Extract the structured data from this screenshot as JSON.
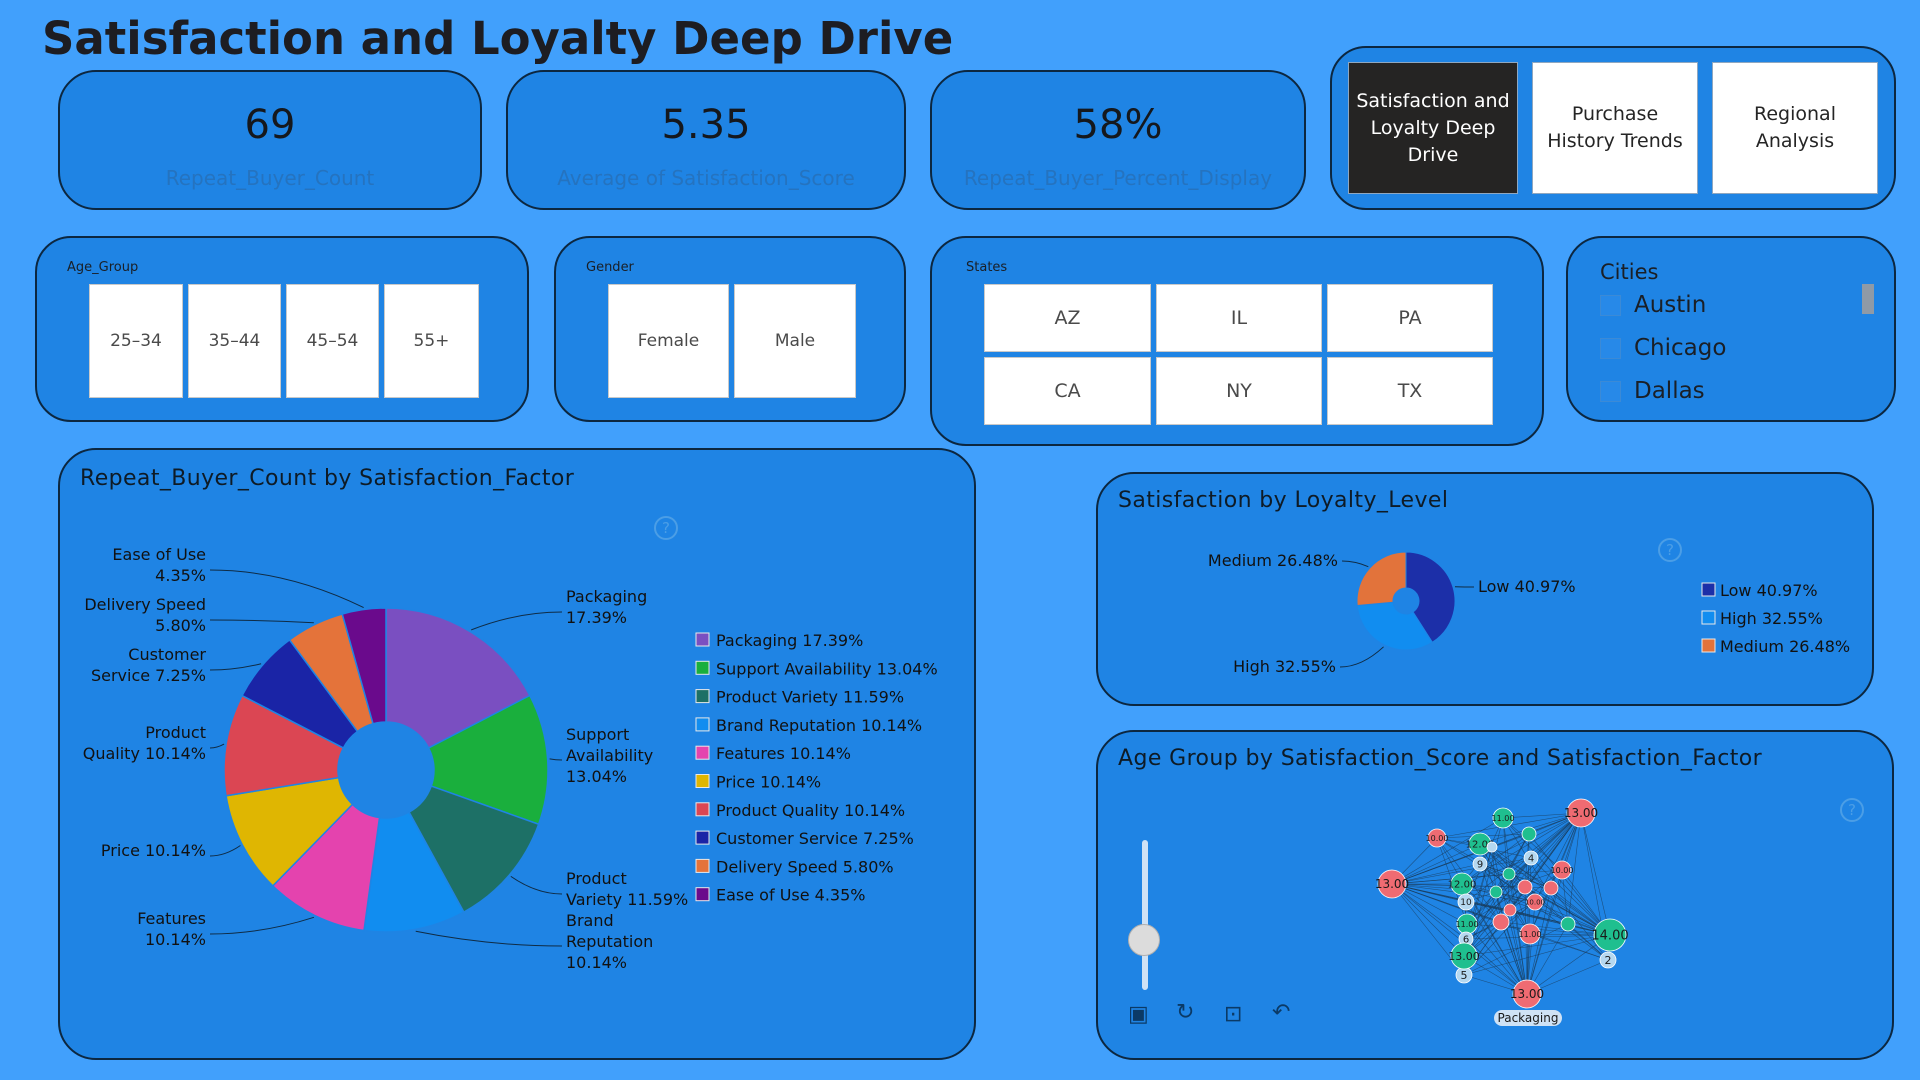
{
  "page": {
    "title": "Satisfaction and Loyalty Deep Drive"
  },
  "kpis": [
    {
      "value": "69",
      "label": "Repeat_Buyer_Count"
    },
    {
      "value": "5.35",
      "label": "Average of Satisfaction_Score"
    },
    {
      "value": "58%",
      "label": "Repeat_Buyer_Percent_Display"
    }
  ],
  "nav": {
    "satisfaction": "Satisfaction and Loyalty Deep Drive",
    "purchase": "Purchase History Trends",
    "regional": "Regional Analysis"
  },
  "slicers": {
    "age": {
      "title": "Age_Group",
      "options": [
        "25–34",
        "35–44",
        "45–54",
        "55+"
      ]
    },
    "gender": {
      "title": "Gender",
      "options": [
        "Female",
        "Male"
      ]
    },
    "states": {
      "title": "States",
      "options": [
        "AZ",
        "IL",
        "PA",
        "CA",
        "NY",
        "TX"
      ]
    },
    "cities": {
      "title": "Cities",
      "options": [
        "Austin",
        "Chicago",
        "Dallas"
      ]
    }
  },
  "icons": {
    "help": "help-circle-icon",
    "screenshot": "camera-icon",
    "refresh": "refresh-icon",
    "lock": "lock-icon",
    "undo": "undo-icon",
    "zoom": "zoom-slider"
  },
  "chart_data": [
    {
      "type": "pie",
      "title": "Repeat_Buyer_Count by Satisfaction_Factor",
      "legend_position": "right",
      "donut": true,
      "slices": [
        {
          "label": "Packaging",
          "value": 17.39,
          "pct": "17.39%",
          "legend": "Packaging 17.39%",
          "callout": [
            "Packaging",
            "17.39%"
          ],
          "color": "#7a4fc1"
        },
        {
          "label": "Support Availability",
          "value": 13.04,
          "pct": "13.04%",
          "legend": "Support Availability 13.04%",
          "callout": [
            "Support",
            "Availability",
            "13.04%"
          ],
          "color": "#1aaf3d"
        },
        {
          "label": "Product Variety",
          "value": 11.59,
          "pct": "11.59%",
          "legend": "Product Variety 11.59%",
          "callout": [
            "Product",
            "Variety 11.59%"
          ],
          "color": "#1d7066"
        },
        {
          "label": "Brand Reputation",
          "value": 10.14,
          "pct": "10.14%",
          "legend": "Brand Reputation 10.14%",
          "callout": [
            "Brand",
            "Reputation",
            "10.14%"
          ],
          "color": "#118df0"
        },
        {
          "label": "Features",
          "value": 10.14,
          "pct": "10.14%",
          "legend": "Features 10.14%",
          "callout": [
            "Features",
            "10.14%"
          ],
          "color": "#e443ae"
        },
        {
          "label": "Price",
          "value": 10.14,
          "pct": "10.14%",
          "legend": "Price 10.14%",
          "callout": [
            "Price 10.14%"
          ],
          "color": "#dfb602"
        },
        {
          "label": "Product Quality",
          "value": 10.14,
          "pct": "10.14%",
          "legend": "Product Quality 10.14%",
          "callout": [
            "Product",
            "Quality 10.14%"
          ],
          "color": "#db4653"
        },
        {
          "label": "Customer Service",
          "value": 7.25,
          "pct": "7.25%",
          "legend": "Customer Service 7.25%",
          "callout": [
            "Customer",
            "Service 7.25%"
          ],
          "color": "#1a24a6"
        },
        {
          "label": "Delivery Speed",
          "value": 5.8,
          "pct": "5.80%",
          "legend": "Delivery Speed 5.80%",
          "callout": [
            "Delivery Speed",
            "5.80%"
          ],
          "color": "#e4733a"
        },
        {
          "label": "Ease of Use",
          "value": 4.35,
          "pct": "4.35%",
          "legend": "Ease of Use 4.35%",
          "callout": [
            "Ease of Use",
            "4.35%"
          ],
          "color": "#6a0a8c"
        }
      ]
    },
    {
      "type": "pie",
      "title": "Satisfaction by Loyalty_Level",
      "legend_position": "right",
      "donut": true,
      "slices": [
        {
          "label": "Low",
          "value": 40.97,
          "legend": "Low 40.97%",
          "callout": "Low 40.97%",
          "color": "#1c2fa8"
        },
        {
          "label": "High",
          "value": 32.55,
          "legend": "High 32.55%",
          "callout": "High 32.55%",
          "color": "#118df0"
        },
        {
          "label": "Medium",
          "value": 26.48,
          "legend": "Medium 26.48%",
          "callout": "Medium 26.48%",
          "color": "#e2733b"
        }
      ]
    },
    {
      "type": "network",
      "title": "Age Group by Satisfaction_Score and Satisfaction_Factor",
      "visible_node_labels": [
        "13.00",
        "13.00",
        "13.00",
        "14.00",
        "12.00",
        "12.00",
        "11.00",
        "11.00",
        "11.00",
        "10.00",
        "10.00",
        "10.00",
        "9",
        "6",
        "5",
        "4",
        "2",
        "Packaging"
      ]
    }
  ]
}
